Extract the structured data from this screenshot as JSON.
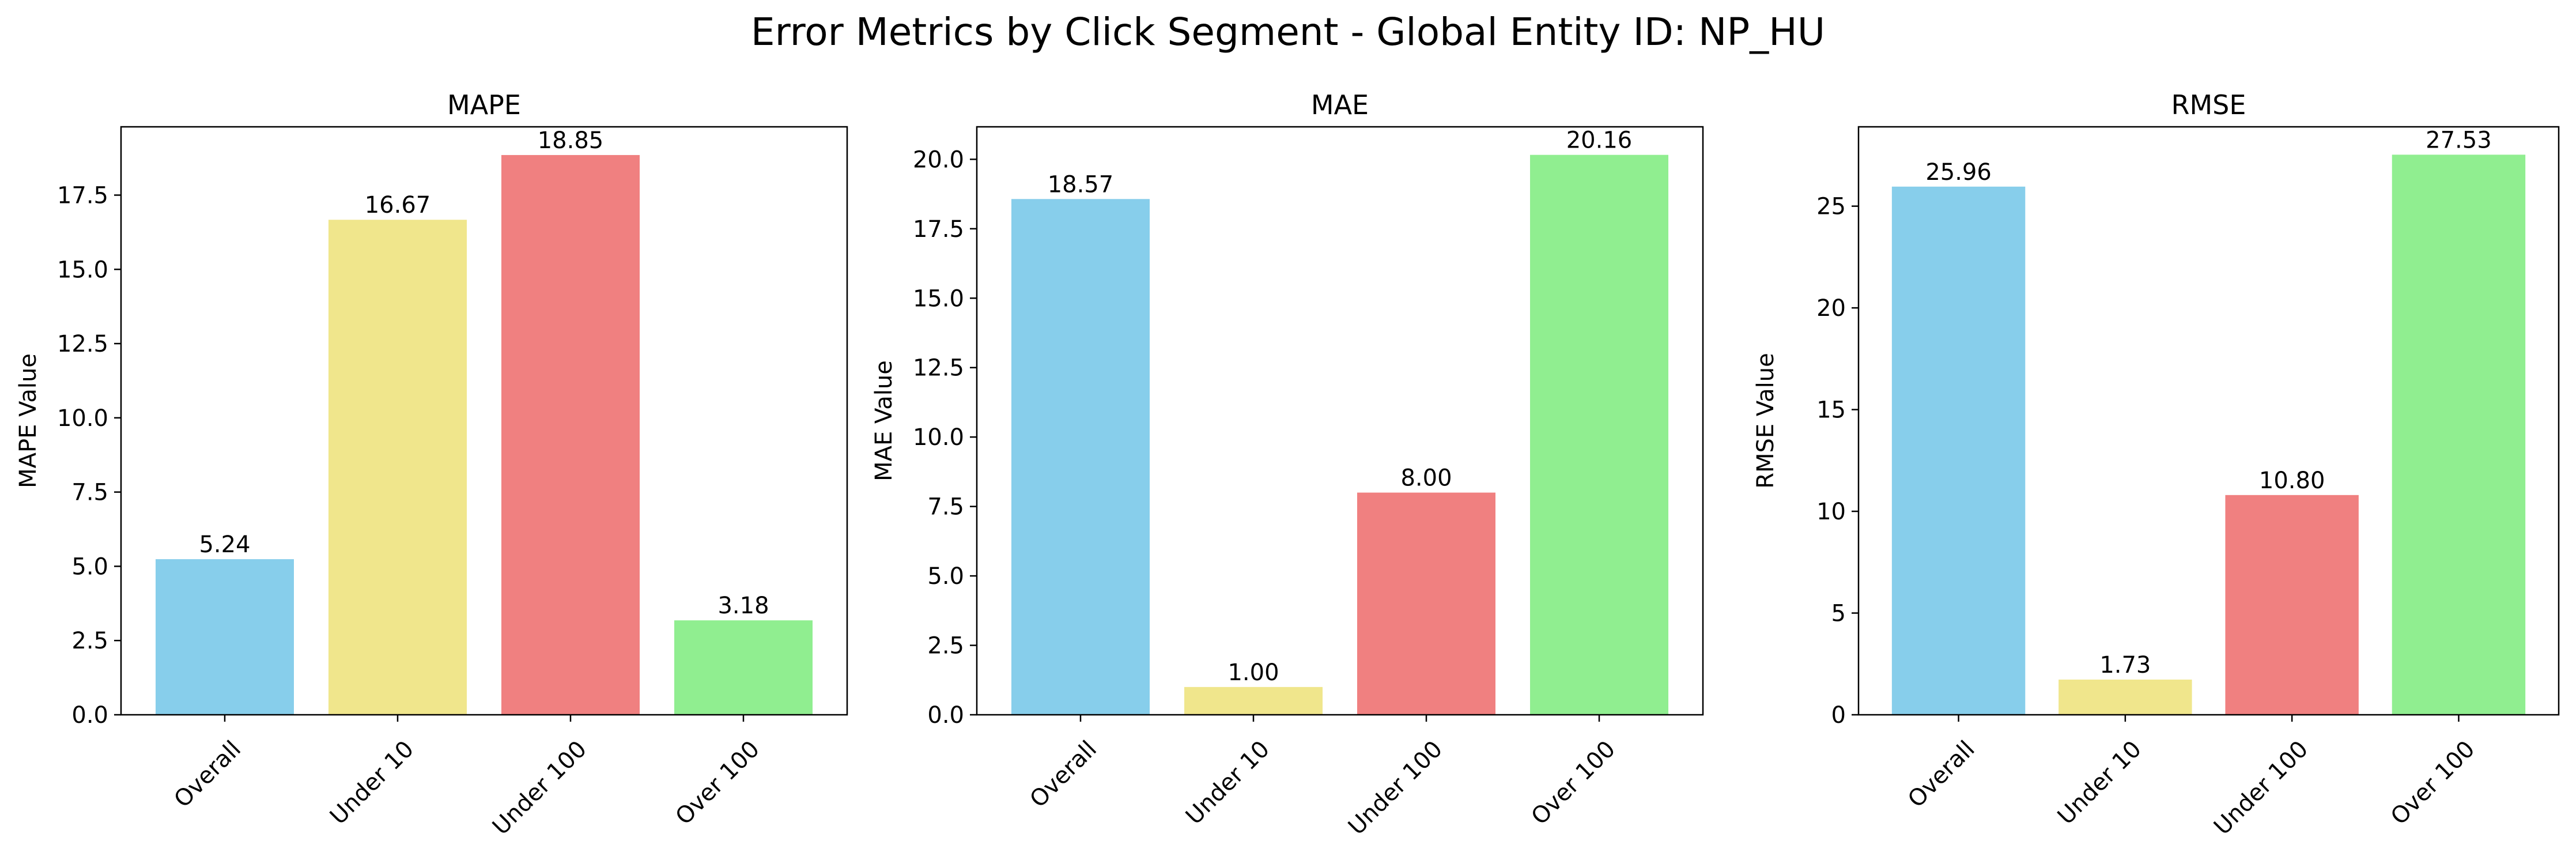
{
  "title": "Error Metrics by Click Segment - Global Entity ID: NP_HU",
  "chart_data": [
    {
      "type": "bar",
      "title": "MAPE",
      "ylabel": "MAPE Value",
      "categories": [
        "Overall",
        "Under 10",
        "Under 100",
        "Over 100"
      ],
      "values": [
        5.24,
        16.67,
        18.85,
        3.18
      ],
      "value_labels": [
        "5.24",
        "16.67",
        "18.85",
        "3.18"
      ],
      "colors": [
        "#87CEEB",
        "#F0E68C",
        "#F08080",
        "#90EE90"
      ],
      "ylim": [
        0,
        19.8
      ],
      "yticks": [
        0.0,
        2.5,
        5.0,
        7.5,
        10.0,
        12.5,
        15.0,
        17.5
      ],
      "ytick_labels": [
        "0.0",
        "2.5",
        "5.0",
        "7.5",
        "10.0",
        "12.5",
        "15.0",
        "17.5"
      ],
      "grid": false
    },
    {
      "type": "bar",
      "title": "MAE",
      "ylabel": "MAE Value",
      "categories": [
        "Overall",
        "Under 10",
        "Under 100",
        "Over 100"
      ],
      "values": [
        18.57,
        1.0,
        8.0,
        20.16
      ],
      "value_labels": [
        "18.57",
        "1.00",
        "8.00",
        "20.16"
      ],
      "colors": [
        "#87CEEB",
        "#F0E68C",
        "#F08080",
        "#90EE90"
      ],
      "ylim": [
        0,
        21.17
      ],
      "yticks": [
        0.0,
        2.5,
        5.0,
        7.5,
        10.0,
        12.5,
        15.0,
        17.5,
        20.0
      ],
      "ytick_labels": [
        "0.0",
        "2.5",
        "5.0",
        "7.5",
        "10.0",
        "12.5",
        "15.0",
        "17.5",
        "20.0"
      ],
      "grid": false
    },
    {
      "type": "bar",
      "title": "RMSE",
      "ylabel": "RMSE Value",
      "categories": [
        "Overall",
        "Under 10",
        "Under 100",
        "Over 100"
      ],
      "values": [
        25.96,
        1.73,
        10.8,
        27.53
      ],
      "value_labels": [
        "25.96",
        "1.73",
        "10.80",
        "27.53"
      ],
      "colors": [
        "#87CEEB",
        "#F0E68C",
        "#F08080",
        "#90EE90"
      ],
      "ylim": [
        0,
        28.9
      ],
      "yticks": [
        0,
        5,
        10,
        15,
        20,
        25
      ],
      "ytick_labels": [
        "0",
        "5",
        "10",
        "15",
        "20",
        "25"
      ],
      "grid": false
    }
  ]
}
